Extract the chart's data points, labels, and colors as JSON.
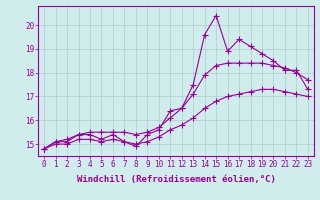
{
  "xlabel": "Windchill (Refroidissement éolien,°C)",
  "x_data": [
    0,
    1,
    2,
    3,
    4,
    5,
    6,
    7,
    8,
    9,
    10,
    11,
    12,
    13,
    14,
    15,
    16,
    17,
    18,
    19,
    20,
    21,
    22,
    23
  ],
  "y_actual": [
    14.8,
    15.1,
    15.1,
    15.4,
    15.4,
    15.2,
    15.4,
    15.1,
    14.9,
    15.4,
    15.6,
    16.4,
    16.5,
    17.5,
    19.6,
    20.4,
    18.9,
    19.4,
    19.1,
    18.8,
    18.5,
    18.1,
    18.1,
    17.3
  ],
  "y_min": [
    14.8,
    15.0,
    15.0,
    15.2,
    15.2,
    15.1,
    15.2,
    15.1,
    15.0,
    15.1,
    15.3,
    15.6,
    15.8,
    16.1,
    16.5,
    16.8,
    17.0,
    17.1,
    17.2,
    17.3,
    17.3,
    17.2,
    17.1,
    17.0
  ],
  "y_max": [
    14.8,
    15.1,
    15.2,
    15.4,
    15.5,
    15.5,
    15.5,
    15.5,
    15.4,
    15.5,
    15.7,
    16.1,
    16.5,
    17.1,
    17.9,
    18.3,
    18.4,
    18.4,
    18.4,
    18.4,
    18.3,
    18.2,
    18.0,
    17.7
  ],
  "ylim": [
    14.5,
    20.8
  ],
  "xlim": [
    -0.5,
    23.5
  ],
  "yticks": [
    15,
    16,
    17,
    18,
    19,
    20
  ],
  "xticks": [
    0,
    1,
    2,
    3,
    4,
    5,
    6,
    7,
    8,
    9,
    10,
    11,
    12,
    13,
    14,
    15,
    16,
    17,
    18,
    19,
    20,
    21,
    22,
    23
  ],
  "line_color": "#990099",
  "bg_color": "#d0ecec",
  "grid_color": "#b0cccc",
  "marker": "+",
  "marker_size": 4,
  "linewidth": 0.8,
  "tick_fontsize": 5.5,
  "xlabel_fontsize": 6.5
}
